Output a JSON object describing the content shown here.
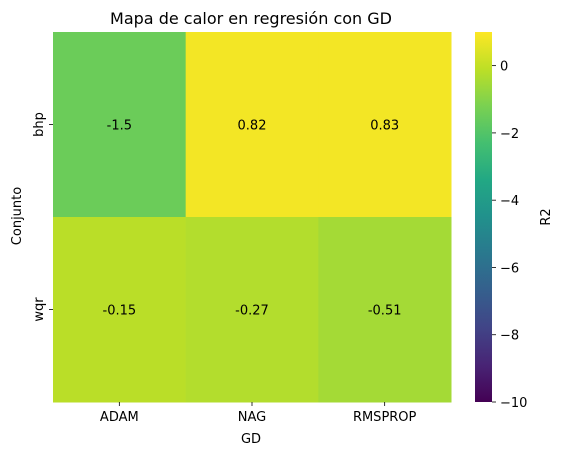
{
  "chart_data": {
    "type": "heatmap",
    "title": "Mapa de calor en regresión con GD",
    "xlabel": "GD",
    "ylabel": "Conjunto",
    "x_categories": [
      "ADAM",
      "NAG",
      "RMSPROP"
    ],
    "y_categories": [
      "bhp",
      "wqr"
    ],
    "values": [
      [
        -1.5,
        0.82,
        0.83
      ],
      [
        -0.15,
        -0.27,
        -0.51
      ]
    ],
    "value_labels": [
      [
        "-1.5",
        "0.82",
        "0.83"
      ],
      [
        "-0.15",
        "-0.27",
        "-0.51"
      ]
    ],
    "colormap": "viridis",
    "colorbar": {
      "label": "R2",
      "vmin": -10,
      "vmax": 1,
      "ticks": [
        0,
        -2,
        -4,
        -6,
        -8,
        -10
      ],
      "tick_labels": [
        "0",
        "−2",
        "−4",
        "−6",
        "−8",
        "−10"
      ]
    }
  }
}
